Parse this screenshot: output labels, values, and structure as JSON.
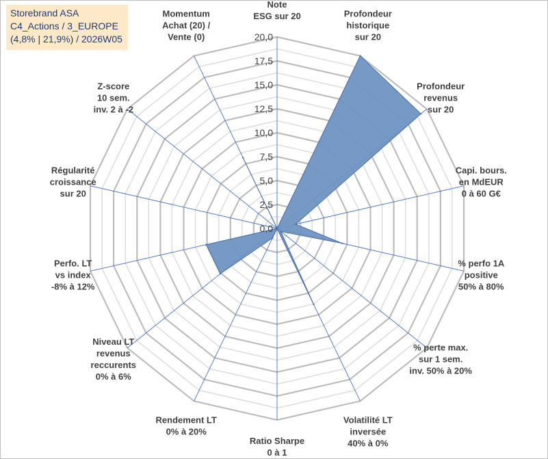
{
  "header": {
    "line1": "Storebrand ASA",
    "line2": "C4_Actions / 3_EUROPE",
    "line3": "(4,8% | 21,9%) / 2026W05"
  },
  "colors": {
    "fill": "#6f93c2",
    "stroke": "#4a6fa5",
    "grid": "#c8c8c8",
    "spoke": "#4472c4",
    "header_bg": "#fde9c7",
    "header_text": "#1f3b75"
  },
  "chart_data": {
    "type": "radar",
    "categories": [
      [
        "Note",
        "ESG sur 20"
      ],
      [
        "Profondeur",
        "historique",
        "sur 20"
      ],
      [
        "Profondeur",
        "revenus",
        "sur 20"
      ],
      [
        "Capi. bours.",
        "en MdEUR",
        "0 à 60 G€"
      ],
      [
        "% perfo 1A",
        "positive",
        "50% à 80%"
      ],
      [
        "% perte max.",
        "sur 1 sem.",
        "inv. 50% à 20%"
      ],
      [
        "Volatilité LT",
        "inversée",
        "40% à 0%"
      ],
      [
        "Ratio Sharpe",
        "0 à 1"
      ],
      [
        "Rendement LT",
        "0% à 20%"
      ],
      [
        "Niveau LT",
        "revenus",
        "reccurents",
        "0% à 6%"
      ],
      [
        "Perfo. LT",
        "vs index",
        "-8% à 12%"
      ],
      [
        "Régularité",
        "croissance",
        "sur 20"
      ],
      [
        "Z-score",
        "10 sem.",
        "inv. 2 à -2"
      ],
      [
        "Momentum",
        "Achat (20) /",
        "Vente (0)"
      ]
    ],
    "values": [
      0,
      20,
      19.2,
      2.0,
      7.0,
      0.5,
      8.8,
      0,
      1.1,
      7.6,
      7.6,
      0,
      0,
      8.2
    ],
    "rlim": [
      0,
      20
    ],
    "ticks": [
      "0,0",
      "2,5",
      "5,0",
      "7,5",
      "10,0",
      "12,5",
      "15,0",
      "17,5",
      "20,0"
    ],
    "grid": true,
    "legend": "none"
  }
}
